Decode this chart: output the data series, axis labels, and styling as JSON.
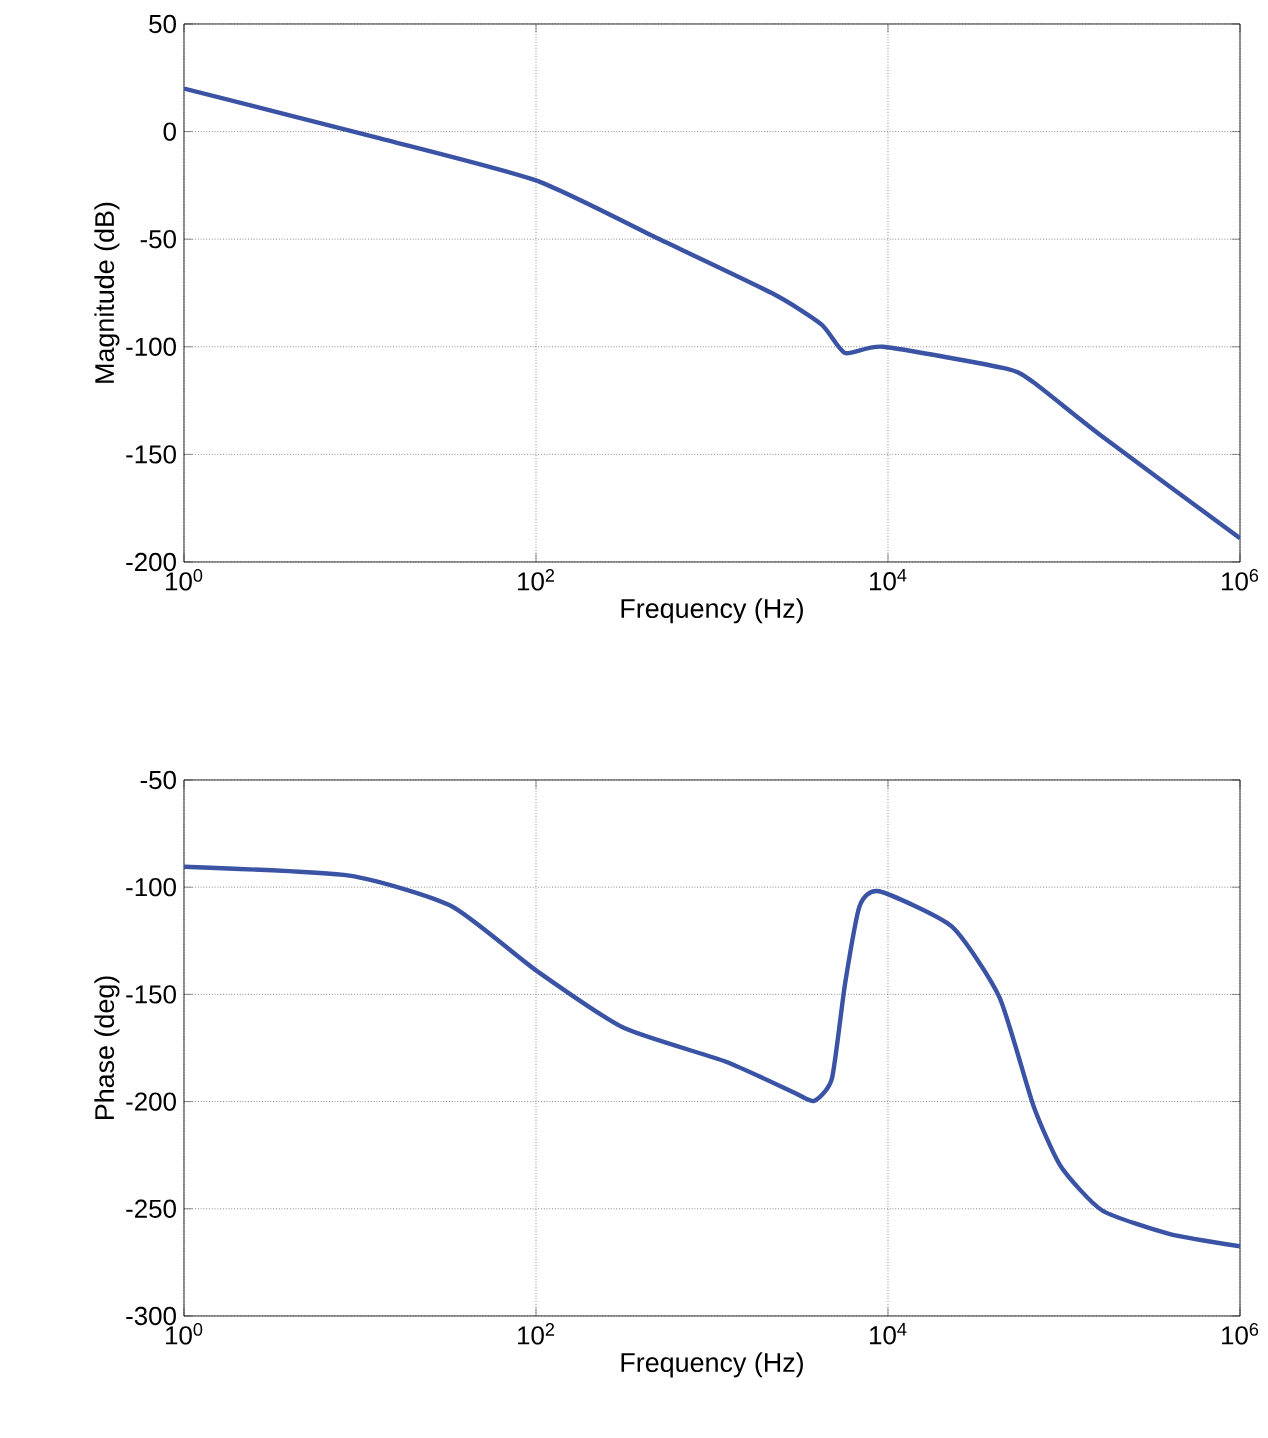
{
  "chart_data": [
    {
      "type": "line",
      "xlabel": "Frequency (Hz)",
      "ylabel": "Magnitude (dB)",
      "log": "x",
      "grid": true,
      "line_style": "solid",
      "xlim": [
        1,
        1000000
      ],
      "ylim": [
        -200,
        50
      ],
      "xticks": [
        {
          "value": 1,
          "label": "10$^{0}$"
        },
        {
          "value": 100,
          "label": "10$^{2}$"
        },
        {
          "value": 10000,
          "label": "10$^{4}$"
        },
        {
          "value": 1000000,
          "label": "10$^{6}$"
        }
      ],
      "yticks": [
        -200,
        -150,
        -100,
        -50,
        0,
        50
      ],
      "series": [
        {
          "color": "#3a53a4",
          "x": [
            1,
            12.5,
            100,
            490,
            2240,
            4200,
            5700,
            9400,
            47000,
            67000,
            165000,
            1000000
          ],
          "values": [
            20,
            -2.8,
            -22.7,
            -49.6,
            -75.5,
            -89.7,
            -102.9,
            -100,
            -110.2,
            -116.5,
            -141.7,
            -189
          ]
        }
      ]
    },
    {
      "type": "line",
      "xlabel": "Frequency (Hz)",
      "ylabel": "Phase (deg)",
      "log": "x",
      "grid": true,
      "line_style": "solid",
      "xlim": [
        1,
        1000000
      ],
      "ylim": [
        -300,
        -50
      ],
      "xticks": [
        {
          "value": 1,
          "label": "10$^{0}$"
        },
        {
          "value": 100,
          "label": "10$^{2}$"
        },
        {
          "value": 10000,
          "label": "10$^{4}$"
        },
        {
          "value": 1000000,
          "label": "10$^{6}$"
        }
      ],
      "yticks": [
        -300,
        -250,
        -200,
        -150,
        -100,
        -50
      ],
      "series": [
        {
          "color": "#3a53a4",
          "x": [
            1,
            8.7,
            33,
            100,
            315,
            1200,
            2900,
            3800,
            4800,
            5700,
            6900,
            8900,
            23000,
            43000,
            67000,
            96000,
            165000,
            400000,
            1000000
          ],
          "values": [
            -90.5,
            -94.6,
            -108.8,
            -138.8,
            -165.6,
            -181.4,
            -195.6,
            -199.7,
            -189.3,
            -145.1,
            -108.8,
            -101.9,
            -118.3,
            -151.4,
            -201.9,
            -230.3,
            -250.8,
            -261.8,
            -267.5
          ]
        }
      ]
    }
  ]
}
